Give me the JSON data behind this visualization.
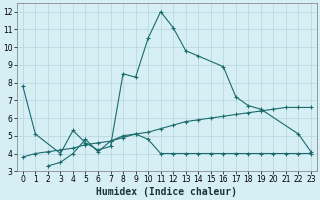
{
  "xlabel": "Humidex (Indice chaleur)",
  "xlim": [
    -0.5,
    23.5
  ],
  "ylim": [
    3,
    12.5
  ],
  "yticks": [
    3,
    4,
    5,
    6,
    7,
    8,
    9,
    10,
    11,
    12
  ],
  "xticks": [
    0,
    1,
    2,
    3,
    4,
    5,
    6,
    7,
    8,
    9,
    10,
    11,
    12,
    13,
    14,
    15,
    16,
    17,
    18,
    19,
    20,
    21,
    22,
    23
  ],
  "bg_color": "#d6eff5",
  "grid_color": "#b5d5de",
  "line_color": "#1a6b6b",
  "series0_x": [
    0,
    1,
    3,
    4,
    5,
    6,
    7,
    8,
    9,
    10,
    11,
    12,
    13,
    14,
    16,
    17,
    18,
    19,
    22,
    23
  ],
  "series0_y": [
    7.8,
    5.1,
    4.0,
    5.3,
    4.6,
    4.2,
    4.4,
    8.5,
    8.3,
    10.5,
    12.0,
    11.1,
    9.8,
    9.5,
    8.9,
    7.2,
    6.7,
    6.5,
    5.1,
    4.1
  ],
  "series1_x": [
    2,
    3,
    4,
    5,
    6,
    7,
    8,
    9,
    10,
    11,
    12,
    13,
    14,
    15,
    16,
    17,
    18,
    19,
    20,
    21,
    22,
    23
  ],
  "series1_y": [
    3.3,
    3.5,
    4.0,
    4.8,
    4.1,
    4.7,
    5.0,
    5.1,
    4.8,
    4.0,
    4.0,
    4.0,
    4.0,
    4.0,
    4.0,
    4.0,
    4.0,
    4.0,
    4.0,
    4.0,
    4.0,
    4.0
  ],
  "series2_x": [
    0,
    1,
    2,
    3,
    4,
    5,
    6,
    7,
    8,
    9,
    10,
    11,
    12,
    13,
    14,
    15,
    16,
    17,
    18,
    19,
    20,
    21,
    22,
    23
  ],
  "series2_y": [
    3.8,
    4.0,
    4.1,
    4.2,
    4.3,
    4.5,
    4.6,
    4.7,
    4.9,
    5.1,
    5.2,
    5.4,
    5.6,
    5.8,
    5.9,
    6.0,
    6.1,
    6.2,
    6.3,
    6.4,
    6.5,
    6.6,
    6.6,
    6.6
  ]
}
